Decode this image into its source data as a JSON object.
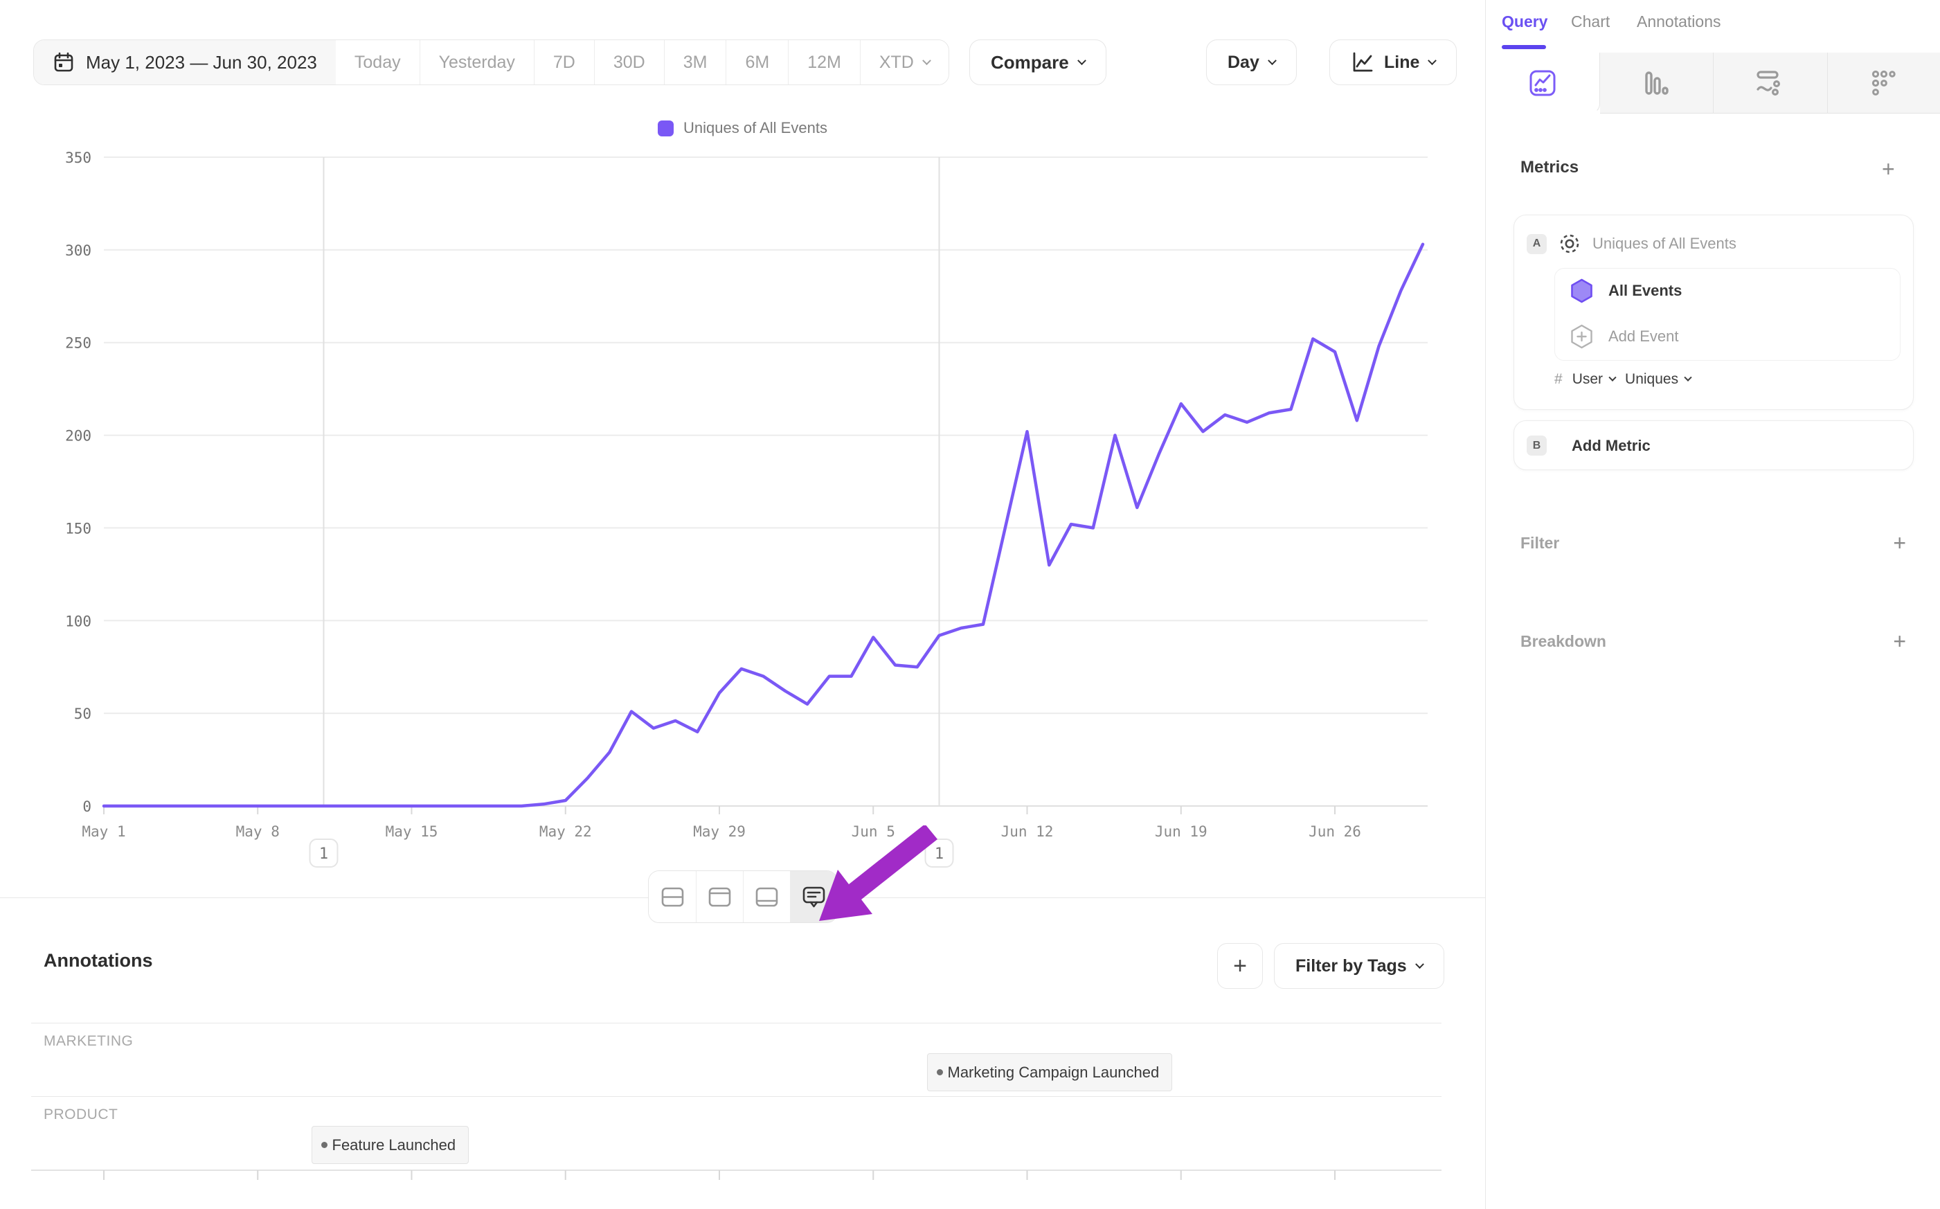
{
  "toolbar": {
    "date_range": "May 1, 2023 — Jun 30, 2023",
    "quick_ranges": [
      "Today",
      "Yesterday",
      "7D",
      "30D",
      "3M",
      "6M",
      "12M"
    ],
    "xtd_label": "XTD",
    "compare_label": "Compare",
    "granularity_label": "Day",
    "chart_type_label": "Line"
  },
  "chart_data": {
    "type": "line",
    "legend": "Uniques of All Events",
    "series_color": "#7A58F5",
    "start_date": "May 1, 2023",
    "end_date": "Jun 30, 2023",
    "granularity": "day",
    "values": [
      0,
      0,
      0,
      0,
      0,
      0,
      0,
      0,
      0,
      0,
      0,
      0,
      0,
      0,
      0,
      0,
      0,
      0,
      0,
      0,
      1,
      3,
      15,
      29,
      51,
      42,
      46,
      40,
      61,
      74,
      70,
      62,
      55,
      70,
      70,
      91,
      76,
      75,
      92,
      96,
      98,
      150,
      202,
      130,
      152,
      150,
      200,
      161,
      190,
      217,
      202,
      211,
      207,
      212,
      214,
      252,
      245,
      208,
      248,
      278,
      303
    ],
    "x_tick_labels": [
      "May 1",
      "May 8",
      "May 15",
      "May 22",
      "May 29",
      "Jun 5",
      "Jun 12",
      "Jun 19",
      "Jun 26"
    ],
    "y_ticks": [
      0,
      50,
      100,
      150,
      200,
      250,
      300,
      350
    ],
    "ylim": [
      0,
      350
    ],
    "grid": true,
    "legend_position": "top-center",
    "annotation_markers": [
      {
        "day_index": 10,
        "count": "1"
      },
      {
        "day_index": 38,
        "count": "1"
      }
    ]
  },
  "sidebar": {
    "tabs": [
      {
        "label": "Query",
        "active": true
      },
      {
        "label": "Chart",
        "active": false
      },
      {
        "label": "Annotations",
        "active": false
      }
    ],
    "metrics_title": "Metrics",
    "metrics_add_label": "+",
    "metric_a": {
      "badge": "A",
      "name": "Uniques of All Events",
      "event": "All Events",
      "add_event_label": "Add Event",
      "count_symbol": "#",
      "entity": "User",
      "aggregation": "Uniques"
    },
    "metric_b": {
      "badge": "B",
      "label": "Add Metric"
    },
    "filter_label": "Filter",
    "filter_add_label": "+",
    "breakdown_label": "Breakdown",
    "breakdown_add_label": "+"
  },
  "annotations_panel": {
    "title": "Annotations",
    "add_button_label": "+",
    "filter_by_tags_label": "Filter by Tags",
    "categories": [
      {
        "name": "MARKETING",
        "items": [
          {
            "label": "Marketing Campaign Launched",
            "day_index": 38
          }
        ]
      },
      {
        "name": "PRODUCT",
        "items": [
          {
            "label": "Feature Launched",
            "day_index": 10
          }
        ]
      }
    ]
  },
  "colors": {
    "accent_purple": "#7A58F5",
    "tab_purple": "#6a50f2",
    "arrow_purple": "#A12BC7",
    "grid_gray": "#ececec",
    "axis_text": "#8a8a8a"
  }
}
